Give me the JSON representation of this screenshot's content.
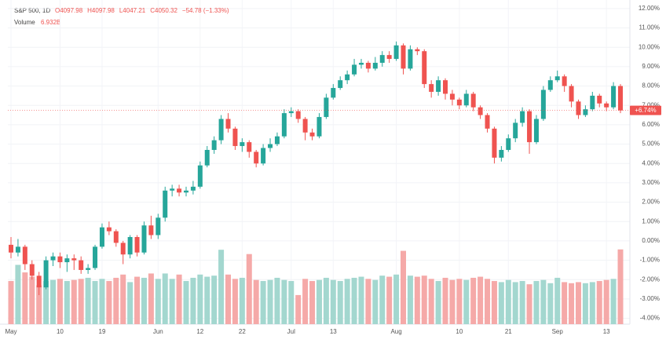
{
  "chart_data": {
    "type": "candlestick",
    "title": "S&P 500, 1D",
    "ohlc_text": [
      "O4097.98",
      "H4097.98",
      "L4047.21",
      "C4050.32",
      "−54.78 (−1.33%)"
    ],
    "volume_name": "Volume",
    "volume_label": "6.932B",
    "last_label": "+6.74%",
    "up_color": "#26a69a",
    "down_color": "#ef5350",
    "volume_up_color": "#a3d7cf",
    "volume_down_color": "#f5a9a8",
    "grid": true,
    "ylim": [
      -4.3,
      12.2
    ],
    "yticks": [
      {
        "value": 12,
        "label": "12.00%"
      },
      {
        "value": 11,
        "label": "11.00%"
      },
      {
        "value": 10,
        "label": "10.00%"
      },
      {
        "value": 9,
        "label": "9.00%"
      },
      {
        "value": 8,
        "label": "8.00%"
      },
      {
        "value": 7,
        "label": "7.00%"
      },
      {
        "value": 6,
        "label": "6.00%"
      },
      {
        "value": 5,
        "label": "5.00%"
      },
      {
        "value": 4,
        "label": "4.00%"
      },
      {
        "value": 3,
        "label": "3.00%"
      },
      {
        "value": 2,
        "label": "2.00%"
      },
      {
        "value": 1,
        "label": "1.00%"
      },
      {
        "value": 0,
        "label": "0.00%"
      },
      {
        "value": -1,
        "label": "-1.00%"
      },
      {
        "value": -2,
        "label": "-2.00%"
      },
      {
        "value": -3,
        "label": "-3.00%"
      },
      {
        "value": -4,
        "label": "-4.00%"
      }
    ],
    "categories": [
      "May",
      null,
      null,
      null,
      null,
      null,
      null,
      "10",
      null,
      null,
      null,
      null,
      null,
      "19",
      null,
      null,
      null,
      null,
      null,
      null,
      null,
      "Jun",
      null,
      null,
      null,
      null,
      null,
      "12",
      null,
      null,
      null,
      null,
      null,
      "22",
      null,
      null,
      null,
      null,
      null,
      null,
      "Jul",
      null,
      null,
      null,
      null,
      null,
      "13",
      null,
      null,
      null,
      null,
      null,
      null,
      null,
      null,
      "Aug",
      null,
      null,
      null,
      null,
      null,
      null,
      null,
      null,
      "10",
      null,
      null,
      null,
      null,
      null,
      null,
      "21",
      null,
      null,
      null,
      null,
      null,
      null,
      "Sep",
      null,
      null,
      null,
      null,
      null,
      null,
      "13",
      null,
      null
    ],
    "open": [
      -0.2,
      -0.6,
      -0.3,
      -1.2,
      -1.8,
      -2.4,
      -1.0,
      -0.8,
      -1.1,
      -0.9,
      -1.0,
      -1.5,
      -1.4,
      -0.3,
      0.7,
      0.5,
      -0.1,
      -0.7,
      0.2,
      -0.6,
      0.8,
      0.3,
      1.2,
      2.6,
      2.7,
      2.5,
      2.6,
      2.8,
      3.9,
      4.7,
      5.2,
      6.3,
      5.8,
      4.9,
      5.1,
      4.6,
      4.0,
      4.8,
      5.0,
      5.4,
      6.6,
      6.7,
      6.3,
      5.6,
      5.4,
      6.4,
      7.4,
      7.9,
      8.3,
      8.6,
      9.1,
      9.2,
      8.9,
      9.2,
      9.6,
      9.4,
      10.1,
      8.9,
      9.9,
      9.8,
      8.1,
      7.7,
      8.3,
      7.6,
      7.3,
      7.0,
      7.6,
      6.9,
      6.5,
      5.8,
      4.3,
      4.7,
      5.3,
      6.1,
      6.7,
      5.1,
      6.3,
      7.8,
      8.3,
      8.5,
      8.0,
      7.2,
      6.5,
      6.8,
      7.5,
      7.1,
      6.9,
      8.0
    ],
    "high": [
      0.2,
      0.1,
      -0.2,
      -1.0,
      -1.6,
      -0.8,
      -0.6,
      -0.6,
      -0.7,
      -0.7,
      -0.8,
      -1.2,
      -0.2,
      0.9,
      1.0,
      0.6,
      0.0,
      0.3,
      0.3,
      1.0,
      1.3,
      1.4,
      2.8,
      2.9,
      2.9,
      2.8,
      3.1,
      4.1,
      4.9,
      5.4,
      6.5,
      6.6,
      5.9,
      5.3,
      5.2,
      4.7,
      5.0,
      5.3,
      5.6,
      6.8,
      6.9,
      6.8,
      6.4,
      5.8,
      6.6,
      7.6,
      8.1,
      8.5,
      8.8,
      9.4,
      9.4,
      9.3,
      9.5,
      9.8,
      9.8,
      10.3,
      10.2,
      10.1,
      10.0,
      9.9,
      8.3,
      8.5,
      8.4,
      7.8,
      7.4,
      7.8,
      7.7,
      7.0,
      6.6,
      5.9,
      4.9,
      5.5,
      6.3,
      6.9,
      6.8,
      6.5,
      8.0,
      8.5,
      8.8,
      8.6,
      8.1,
      7.3,
      7.0,
      7.7,
      7.6,
      7.2,
      8.2,
      8.1
    ],
    "low": [
      -0.9,
      -0.8,
      -1.5,
      -2.0,
      -2.8,
      -2.5,
      -1.3,
      -1.4,
      -1.6,
      -1.5,
      -1.7,
      -1.7,
      -1.5,
      -0.4,
      0.3,
      -0.3,
      -1.2,
      -0.9,
      -0.8,
      -0.7,
      0.1,
      0.1,
      1.0,
      2.3,
      2.3,
      2.3,
      2.4,
      2.7,
      3.8,
      4.5,
      5.0,
      5.6,
      4.7,
      4.6,
      4.3,
      3.8,
      3.9,
      4.6,
      4.9,
      5.3,
      6.4,
      6.1,
      5.2,
      5.2,
      5.3,
      6.3,
      7.3,
      7.8,
      8.1,
      8.5,
      8.9,
      8.7,
      8.8,
      9.0,
      9.2,
      9.3,
      8.6,
      8.8,
      9.6,
      7.9,
      7.4,
      7.5,
      7.3,
      7.0,
      6.8,
      6.9,
      6.7,
      6.3,
      5.6,
      4.0,
      4.1,
      4.6,
      5.1,
      5.9,
      4.5,
      5.0,
      6.2,
      7.7,
      8.2,
      7.7,
      6.9,
      6.3,
      6.4,
      6.7,
      6.9,
      6.7,
      6.8,
      6.6
    ],
    "close": [
      -0.6,
      -0.3,
      -1.2,
      -1.8,
      -2.4,
      -1.0,
      -0.8,
      -1.1,
      -0.9,
      -1.0,
      -1.5,
      -1.4,
      -0.3,
      0.7,
      0.5,
      -0.1,
      -0.7,
      0.2,
      -0.6,
      0.8,
      0.3,
      1.2,
      2.6,
      2.7,
      2.5,
      2.6,
      2.8,
      3.9,
      4.7,
      5.2,
      6.3,
      5.8,
      4.9,
      5.1,
      4.6,
      4.0,
      4.8,
      5.0,
      5.4,
      6.6,
      6.7,
      6.3,
      5.6,
      5.4,
      6.4,
      7.4,
      7.9,
      8.3,
      8.6,
      9.1,
      9.2,
      8.9,
      9.2,
      9.6,
      9.4,
      10.1,
      8.9,
      9.9,
      9.8,
      8.1,
      7.7,
      8.3,
      7.6,
      7.3,
      7.0,
      7.6,
      6.9,
      6.5,
      5.8,
      4.3,
      4.7,
      5.3,
      6.1,
      6.7,
      5.1,
      6.3,
      7.8,
      8.3,
      8.5,
      8.0,
      7.2,
      6.5,
      6.8,
      7.5,
      7.1,
      6.9,
      8.0,
      6.74
    ],
    "volume": [
      4.0,
      5.5,
      4.8,
      4.4,
      3.6,
      4.0,
      4.1,
      4.2,
      4.0,
      4.1,
      4.2,
      4.3,
      4.0,
      4.2,
      4.0,
      4.3,
      4.6,
      3.9,
      4.4,
      4.3,
      4.7,
      4.2,
      4.7,
      4.2,
      4.6,
      4.0,
      4.3,
      4.6,
      4.4,
      4.5,
      6.9,
      4.6,
      4.2,
      4.3,
      6.5,
      4.1,
      4.0,
      4.1,
      4.3,
      4.1,
      4.0,
      2.7,
      4.2,
      4.0,
      4.1,
      4.3,
      4.1,
      4.0,
      4.2,
      4.3,
      4.4,
      4.2,
      4.1,
      4.5,
      4.4,
      4.6,
      6.8,
      4.5,
      4.4,
      4.5,
      4.2,
      4.0,
      4.3,
      4.1,
      4.2,
      4.1,
      4.3,
      4.4,
      4.2,
      4.0,
      3.9,
      4.1,
      3.9,
      4.0,
      3.7,
      4.0,
      4.1,
      3.8,
      4.3,
      3.9,
      3.8,
      3.9,
      3.8,
      3.9,
      4.0,
      4.1,
      4.2,
      6.932
    ]
  }
}
